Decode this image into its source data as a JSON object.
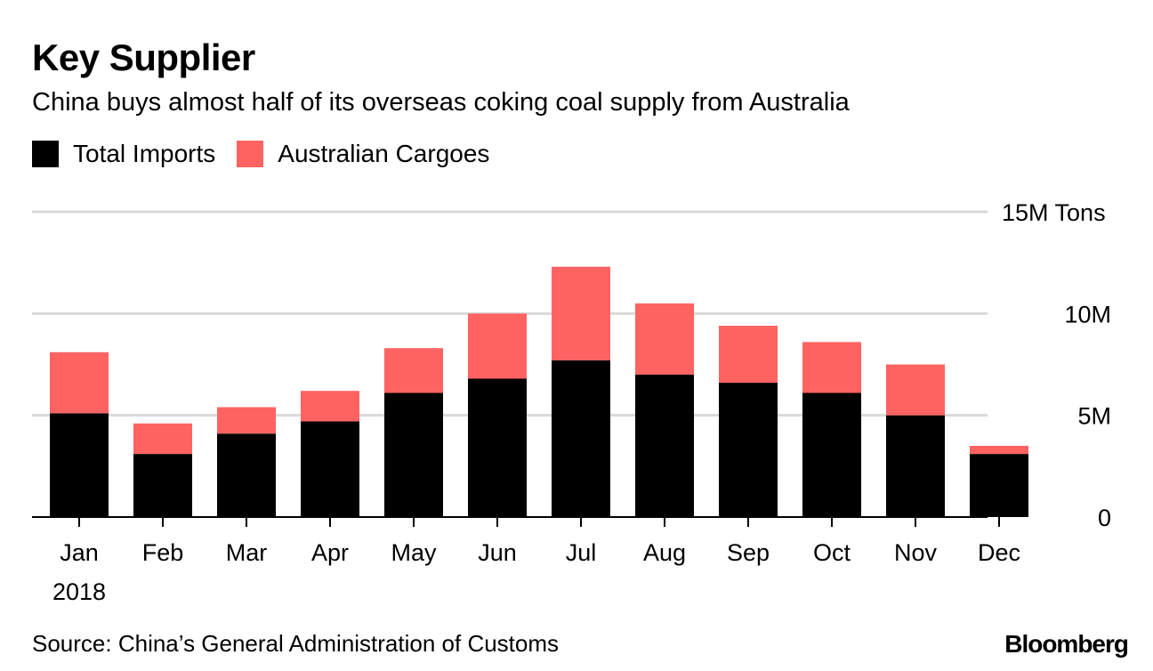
{
  "header": {
    "title": "Key Supplier",
    "subtitle": "China buys almost half of its overseas coking coal supply from Australia"
  },
  "legend": {
    "items": [
      {
        "label": "Total Imports",
        "color": "#000000"
      },
      {
        "label": "Australian Cargoes",
        "color": "#ff6361"
      }
    ]
  },
  "footer": {
    "source": "Source: China’s General Administration of Customs",
    "brand": "Bloomberg"
  },
  "chart_data": {
    "type": "bar",
    "stacked": true,
    "title": "Key Supplier",
    "subtitle": "China buys almost half of its overseas coking coal supply from Australia",
    "categories": [
      "Jan",
      "Feb",
      "Mar",
      "Apr",
      "May",
      "Jun",
      "Jul",
      "Aug",
      "Sep",
      "Oct",
      "Nov",
      "Dec"
    ],
    "year_label": "2018",
    "series": [
      {
        "name": "Total Imports",
        "color": "#000000",
        "values": [
          5.1,
          3.1,
          4.1,
          4.7,
          6.1,
          6.8,
          7.7,
          7.0,
          6.6,
          6.1,
          5.0,
          3.1
        ]
      },
      {
        "name": "Australian Cargoes",
        "color": "#ff6361",
        "values": [
          3.0,
          1.5,
          1.3,
          1.5,
          2.2,
          3.2,
          4.6,
          3.5,
          2.8,
          2.5,
          2.5,
          0.4
        ]
      }
    ],
    "ylim": [
      0,
      15
    ],
    "y_ticks": [
      {
        "value": 0,
        "label": "0"
      },
      {
        "value": 5,
        "label": "5M"
      },
      {
        "value": 10,
        "label": "10M"
      },
      {
        "value": 15,
        "label": "15M Tons"
      }
    ],
    "xlabel": "",
    "ylabel": "",
    "grid": true,
    "axis_side": "right",
    "legend_position": "top-left"
  }
}
